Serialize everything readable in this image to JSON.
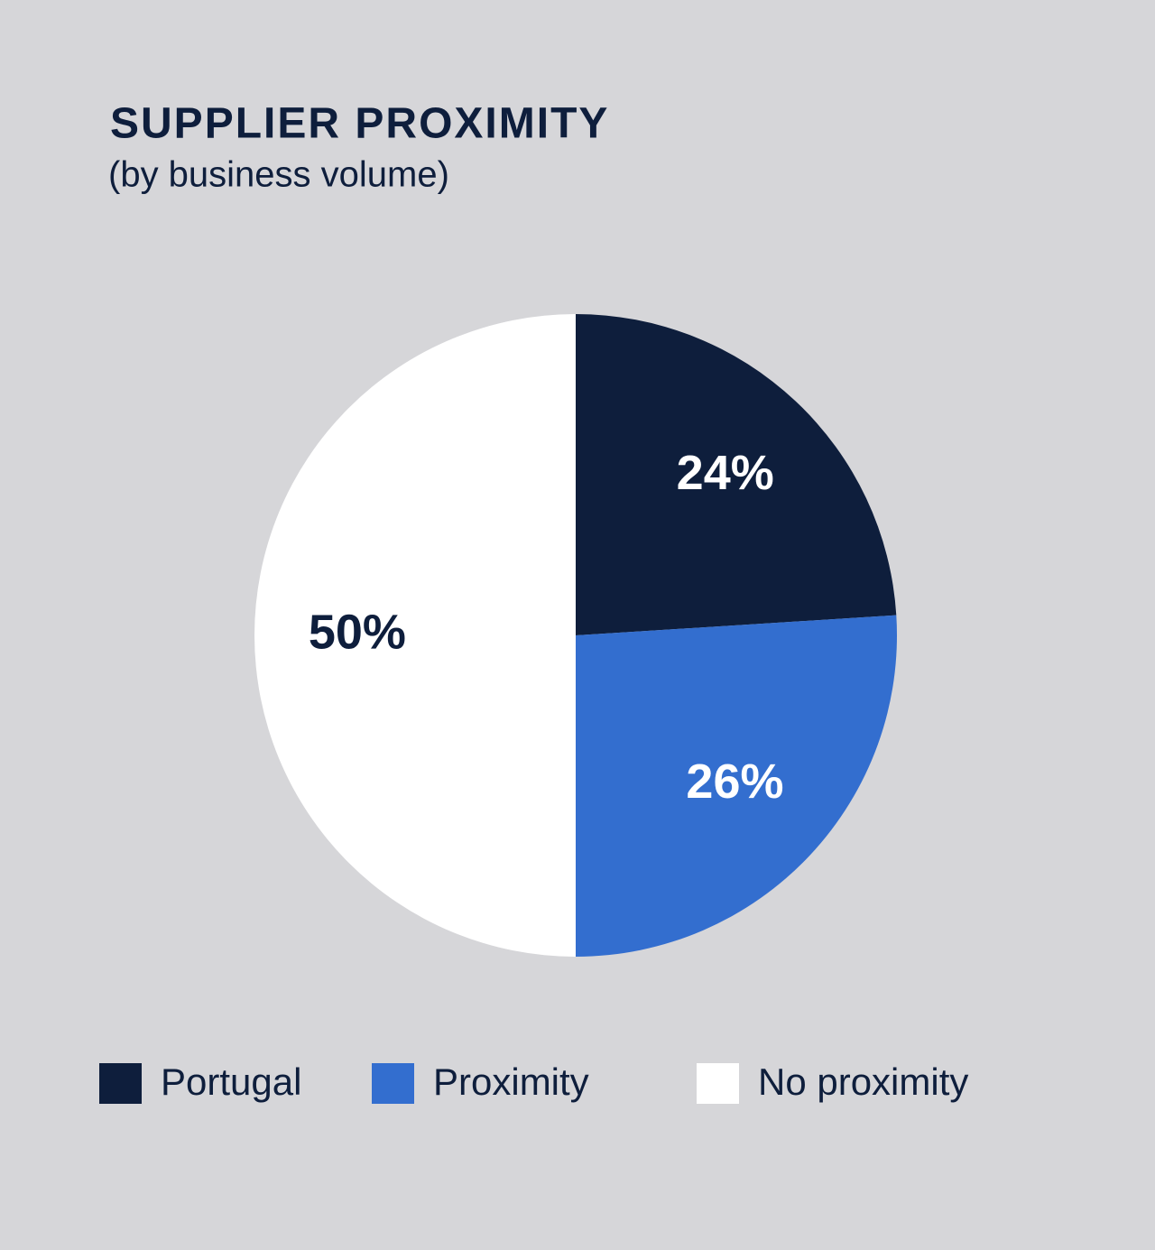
{
  "chart_data": {
    "type": "pie",
    "title": "SUPPLIER PROXIMITY",
    "subtitle": "(by business volume)",
    "categories": [
      "Portugal",
      "Proximity",
      "No proximity"
    ],
    "values": [
      24,
      26,
      50
    ],
    "value_labels": [
      "24%",
      "26%",
      "50%"
    ],
    "colors": [
      "#0e1e3c",
      "#336ecf",
      "#ffffff"
    ]
  }
}
